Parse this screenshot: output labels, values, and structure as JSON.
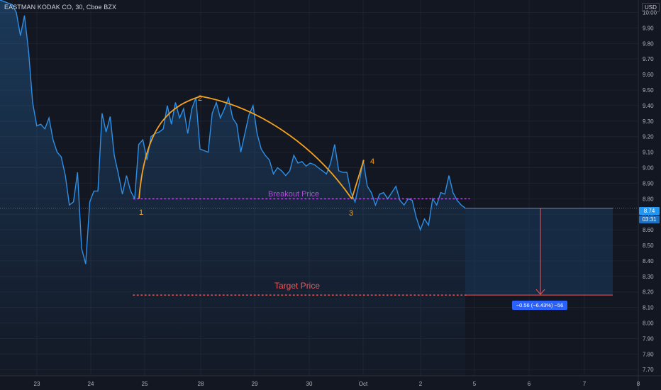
{
  "header": {
    "symbol": "EASTMAN KODAK CO, 30, Cboe BZX",
    "currency": "USD"
  },
  "price_axis": {
    "labels": [
      "10.00",
      "9.90",
      "9.80",
      "9.70",
      "9.60",
      "9.50",
      "9.40",
      "9.30",
      "9.20",
      "9.10",
      "9.00",
      "8.90",
      "8.80",
      "8.70",
      "8.60",
      "8.50",
      "8.40",
      "8.30",
      "8.20",
      "8.10",
      "8.00",
      "7.90",
      "7.80",
      "7.70"
    ],
    "current_price": "8.74",
    "countdown": "03:31"
  },
  "time_axis": {
    "labels": [
      "23",
      "24",
      "25",
      "28",
      "29",
      "30",
      "Oct",
      "2",
      "5",
      "6",
      "7",
      "8"
    ]
  },
  "annotations": {
    "breakout_label": "Breakout Price",
    "target_label": "Target Price",
    "points": [
      "1",
      "2",
      "3",
      "4"
    ],
    "measure_label": "−0.56 (−6.43%) −56"
  },
  "colors": {
    "background": "#131722",
    "price_line": "#2e8fe6",
    "arc": "#f7a21b",
    "breakout": "#b14cd8",
    "target": "#f05658"
  },
  "chart_data": {
    "type": "line",
    "title": "EASTMAN KODAK CO, 30, Cboe BZX",
    "xlabel": "",
    "ylabel": "",
    "y_unit": "USD",
    "ylim": [
      7.66,
      10.08
    ],
    "x_tick_labels": [
      "23",
      "24",
      "25",
      "28",
      "29",
      "30",
      "Oct",
      "2",
      "5",
      "6",
      "7",
      "8"
    ],
    "series": [
      {
        "values": [
          10.08,
          10.07,
          10.06,
          10.05,
          10.0,
          9.85,
          9.98,
          9.75,
          9.42,
          9.27,
          9.28,
          9.25,
          9.32,
          9.18,
          9.1,
          9.07,
          8.95,
          8.76,
          8.78,
          8.97,
          8.48,
          8.38,
          8.78,
          8.85,
          8.85,
          9.35,
          9.23,
          9.33,
          9.08,
          8.96,
          8.83,
          8.95,
          8.85,
          8.8,
          9.15,
          9.18,
          9.05,
          9.2,
          9.22,
          9.23,
          9.25,
          9.4,
          9.28,
          9.42,
          9.32,
          9.38,
          9.22,
          9.38,
          9.45,
          9.12,
          9.11,
          9.1,
          9.35,
          9.42,
          9.32,
          9.38,
          9.45,
          9.32,
          9.28,
          9.1,
          9.22,
          9.34,
          9.4,
          9.22,
          9.12,
          9.08,
          9.05,
          8.96,
          9.0,
          8.98,
          8.95,
          8.98,
          9.08,
          9.03,
          9.04,
          9.01,
          9.03,
          9.02,
          9.0,
          8.98,
          8.96,
          9.03,
          9.15,
          8.98,
          8.97,
          8.97,
          8.84,
          8.78,
          8.9,
          9.05,
          8.88,
          8.84,
          8.76,
          8.83,
          8.84,
          8.8,
          8.84,
          8.88,
          8.79,
          8.76,
          8.8,
          8.79,
          8.68,
          8.6,
          8.67,
          8.63,
          8.8,
          8.76,
          8.84,
          8.83,
          8.95,
          8.84,
          8.79,
          8.76,
          8.74
        ]
      }
    ],
    "breakout_price": 8.8,
    "target_price": 8.18,
    "pattern_points": [
      {
        "label": "1",
        "value": 8.8
      },
      {
        "label": "2",
        "value": 9.46
      },
      {
        "label": "3",
        "value": 8.8
      },
      {
        "label": "4",
        "value": 9.05
      }
    ],
    "measure": {
      "from": 8.74,
      "to": 8.18,
      "change": -0.56,
      "change_pct": -6.43,
      "bars": -56
    },
    "grid": true,
    "legend": "none"
  }
}
